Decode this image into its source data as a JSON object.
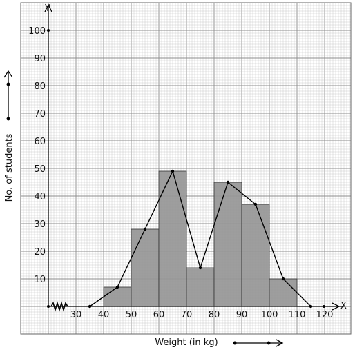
{
  "chart_data": {
    "type": "bar",
    "title": "",
    "xlabel": "Weight (in kg)",
    "ylabel": "No. of students",
    "x_axis_letter": "X",
    "y_axis_letter": "Y",
    "x_ticks": [
      "30",
      "40",
      "50",
      "60",
      "70",
      "80",
      "90",
      "100",
      "110",
      "120"
    ],
    "y_ticks": [
      "10",
      "20",
      "30",
      "40",
      "50",
      "60",
      "70",
      "80",
      "90",
      "100"
    ],
    "xlim": [
      20,
      125
    ],
    "ylim": [
      0,
      100
    ],
    "axis_break": "x-axis break between 20 and 30",
    "grid": true,
    "histogram": {
      "bins": [
        [
          40,
          50
        ],
        [
          50,
          60
        ],
        [
          60,
          70
        ],
        [
          70,
          80
        ],
        [
          80,
          90
        ],
        [
          90,
          100
        ],
        [
          100,
          110
        ]
      ],
      "values": [
        7,
        28,
        49,
        14,
        45,
        37,
        10
      ]
    },
    "frequency_polygon": {
      "x": [
        35,
        45,
        55,
        65,
        75,
        85,
        95,
        105,
        115
      ],
      "y": [
        0,
        7,
        28,
        49,
        14,
        45,
        37,
        10,
        0
      ]
    },
    "colors": {
      "bar_fill": "#969696",
      "grid": "#bdbdbd",
      "line": "#000000"
    }
  }
}
